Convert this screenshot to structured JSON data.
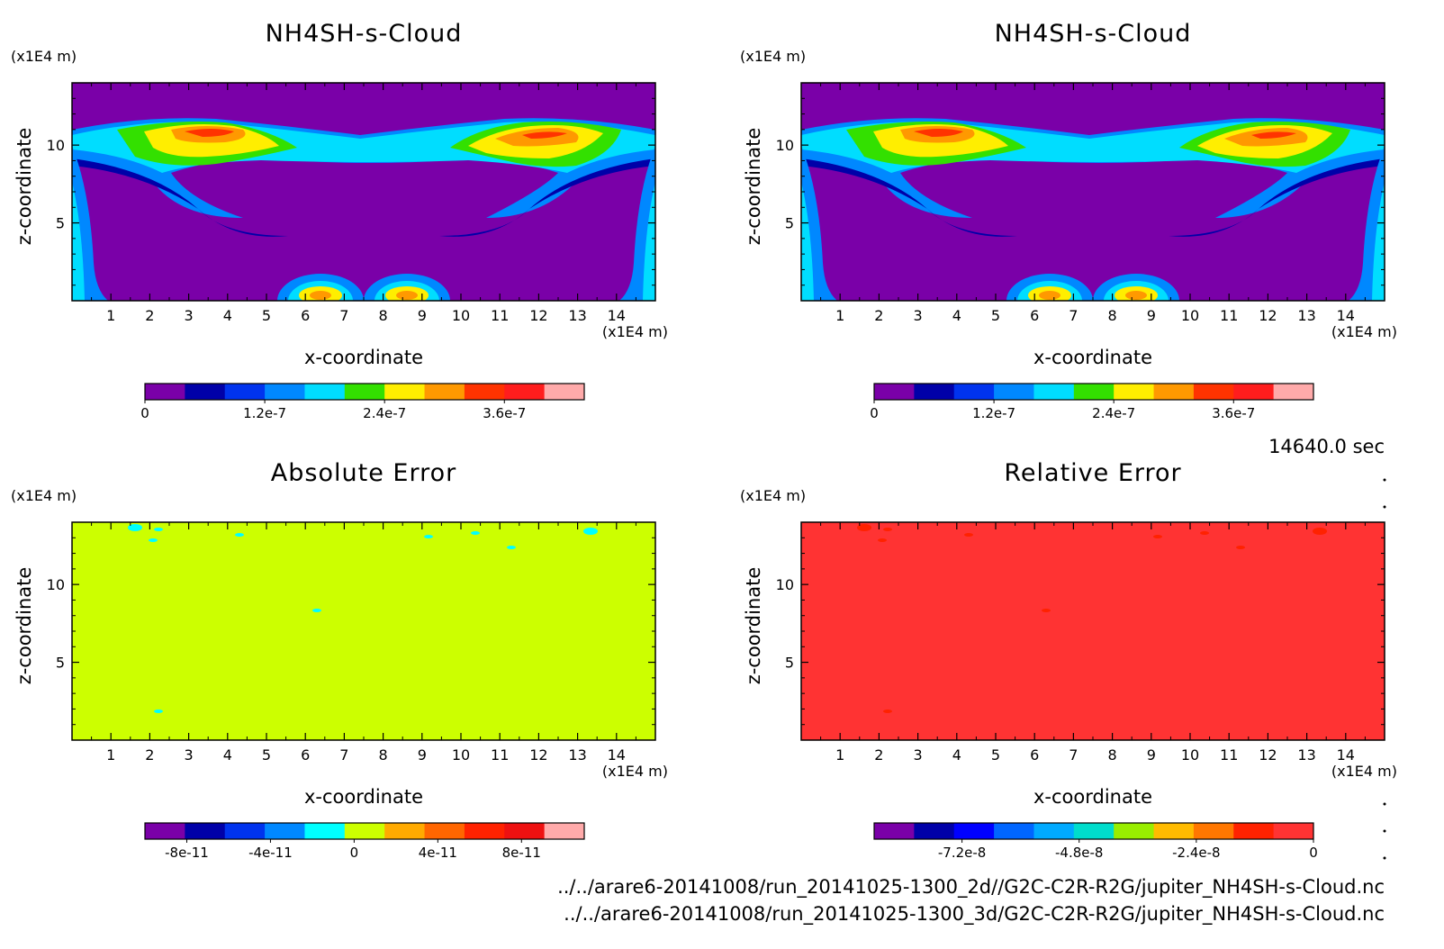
{
  "time_label": "14640.0 sec",
  "footer_lines": [
    "../../arare6-20141008/run_20141025-1300_2d//G2C-C2R-R2G/jupiter_NH4SH-s-Cloud.nc",
    "../../arare6-20141008/run_20141025-1300_3d/G2C-C2R-R2G/jupiter_NH4SH-s-Cloud.nc"
  ],
  "chart_data": [
    {
      "type": "heatmap",
      "title": "NH4SH-s-Cloud",
      "xlabel": "x-coordinate",
      "ylabel": "z-coordinate",
      "x_unit": "(x1E4 m)",
      "y_unit": "(x1E4 m)",
      "xlim": [
        0,
        15
      ],
      "ylim": [
        0,
        14
      ],
      "x_ticks": [
        "1",
        "2",
        "3",
        "4",
        "5",
        "6",
        "7",
        "8",
        "9",
        "10",
        "11",
        "12",
        "13",
        "14"
      ],
      "y_ticks": [
        "5",
        "10"
      ],
      "colorbar": {
        "colors": [
          "#7a00a8",
          "#0000a8",
          "#0033ee",
          "#0088ff",
          "#00ddff",
          "#33e000",
          "#ffee00",
          "#ff9900",
          "#ff3300",
          "#ff1d1d",
          "#ffaaaa"
        ],
        "tick_labels": [
          "0",
          "1.2e-7",
          "2.4e-7",
          "3.6e-7"
        ],
        "tick_values": [
          0,
          1.2e-07,
          2.4e-07,
          3.6e-07
        ],
        "range": [
          0,
          4.4e-07
        ]
      }
    },
    {
      "type": "heatmap",
      "title": "NH4SH-s-Cloud",
      "xlabel": "x-coordinate",
      "ylabel": "z-coordinate",
      "x_unit": "(x1E4 m)",
      "y_unit": "(x1E4 m)",
      "xlim": [
        0,
        15
      ],
      "ylim": [
        0,
        14
      ],
      "x_ticks": [
        "1",
        "2",
        "3",
        "4",
        "5",
        "6",
        "7",
        "8",
        "9",
        "10",
        "11",
        "12",
        "13",
        "14"
      ],
      "y_ticks": [
        "5",
        "10"
      ],
      "colorbar": {
        "colors": [
          "#7a00a8",
          "#0000a8",
          "#0033ee",
          "#0088ff",
          "#00ddff",
          "#33e000",
          "#ffee00",
          "#ff9900",
          "#ff3300",
          "#ff1d1d",
          "#ffaaaa"
        ],
        "tick_labels": [
          "0",
          "1.2e-7",
          "2.4e-7",
          "3.6e-7"
        ],
        "tick_values": [
          0,
          1.2e-07,
          2.4e-07,
          3.6e-07
        ],
        "range": [
          0,
          4.4e-07
        ]
      }
    },
    {
      "type": "heatmap",
      "title": "Absolute Error",
      "xlabel": "x-coordinate",
      "ylabel": "z-coordinate",
      "x_unit": "(x1E4 m)",
      "y_unit": "(x1E4 m)",
      "xlim": [
        0,
        15
      ],
      "ylim": [
        0,
        14
      ],
      "x_ticks": [
        "1",
        "2",
        "3",
        "4",
        "5",
        "6",
        "7",
        "8",
        "9",
        "10",
        "11",
        "12",
        "13",
        "14"
      ],
      "y_ticks": [
        "5",
        "10"
      ],
      "colorbar": {
        "colors": [
          "#7a00a8",
          "#0000a8",
          "#0033ee",
          "#0088ff",
          "#00ffff",
          "#ccff00",
          "#ffaa00",
          "#ff6600",
          "#ff2200",
          "#ee1111",
          "#ffaaaa"
        ],
        "tick_labels": [
          "-8e-11",
          "-4e-11",
          "0",
          "4e-11",
          "8e-11"
        ],
        "tick_values": [
          -8e-11,
          -4e-11,
          0,
          4e-11,
          8e-11
        ],
        "range": [
          -1e-10,
          1.1e-10
        ]
      }
    },
    {
      "type": "heatmap",
      "title": "Relative Error",
      "xlabel": "x-coordinate",
      "ylabel": "z-coordinate",
      "x_unit": "(x1E4 m)",
      "y_unit": "(x1E4 m)",
      "xlim": [
        0,
        15
      ],
      "ylim": [
        0,
        14
      ],
      "x_ticks": [
        "1",
        "2",
        "3",
        "4",
        "5",
        "6",
        "7",
        "8",
        "9",
        "10",
        "11",
        "12",
        "13",
        "14"
      ],
      "y_ticks": [
        "5",
        "10"
      ],
      "colorbar": {
        "colors": [
          "#7a00a8",
          "#0000a8",
          "#0000ff",
          "#0066ff",
          "#00aaff",
          "#00ddcc",
          "#99ee00",
          "#ffbb00",
          "#ff7700",
          "#ff2200",
          "#ff3333"
        ],
        "tick_labels": [
          "-7.2e-8",
          "-4.8e-8",
          "-2.4e-8",
          "0"
        ],
        "tick_values": [
          -7.2e-08,
          -4.8e-08,
          -2.4e-08,
          0
        ],
        "range": [
          -9e-08,
          0
        ]
      }
    }
  ]
}
